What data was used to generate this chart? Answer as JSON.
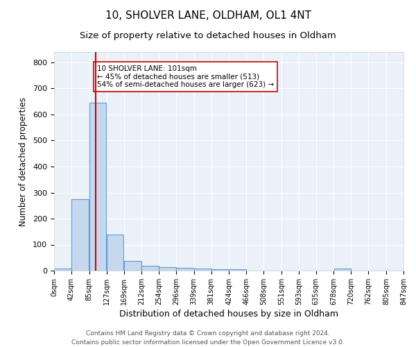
{
  "title1": "10, SHOLVER LANE, OLDHAM, OL1 4NT",
  "title2": "Size of property relative to detached houses in Oldham",
  "xlabel": "Distribution of detached houses by size in Oldham",
  "ylabel": "Number of detached properties",
  "bin_edges": [
    0,
    42,
    85,
    127,
    169,
    212,
    254,
    296,
    339,
    381,
    424,
    466,
    508,
    551,
    593,
    635,
    678,
    720,
    762,
    805,
    847
  ],
  "bin_counts": [
    8,
    275,
    645,
    140,
    37,
    20,
    13,
    12,
    8,
    5,
    5,
    0,
    0,
    0,
    0,
    0,
    8,
    0,
    0,
    0
  ],
  "bar_color": "#c5d8ed",
  "bar_edge_color": "#5b9bd5",
  "vline_x": 101,
  "vline_color": "#cc0000",
  "annotation_text": "10 SHOLVER LANE: 101sqm\n← 45% of detached houses are smaller (513)\n54% of semi-detached houses are larger (623) →",
  "annotation_box_color": "white",
  "annotation_box_edge_color": "#cc0000",
  "ylim": [
    0,
    840
  ],
  "yticks": [
    0,
    100,
    200,
    300,
    400,
    500,
    600,
    700,
    800
  ],
  "tick_labels": [
    "0sqm",
    "42sqm",
    "85sqm",
    "127sqm",
    "169sqm",
    "212sqm",
    "254sqm",
    "296sqm",
    "339sqm",
    "381sqm",
    "424sqm",
    "466sqm",
    "508sqm",
    "551sqm",
    "593sqm",
    "635sqm",
    "678sqm",
    "720sqm",
    "762sqm",
    "805sqm",
    "847sqm"
  ],
  "background_color": "#eaf1f8",
  "footer_text": "Contains HM Land Registry data © Crown copyright and database right 2024.\nContains public sector information licensed under the Open Government Licence v3.0.",
  "title1_fontsize": 11,
  "title2_fontsize": 9.5,
  "xlabel_fontsize": 9,
  "ylabel_fontsize": 8.5,
  "footer_fontsize": 6.5,
  "annotation_fontsize": 7.5
}
